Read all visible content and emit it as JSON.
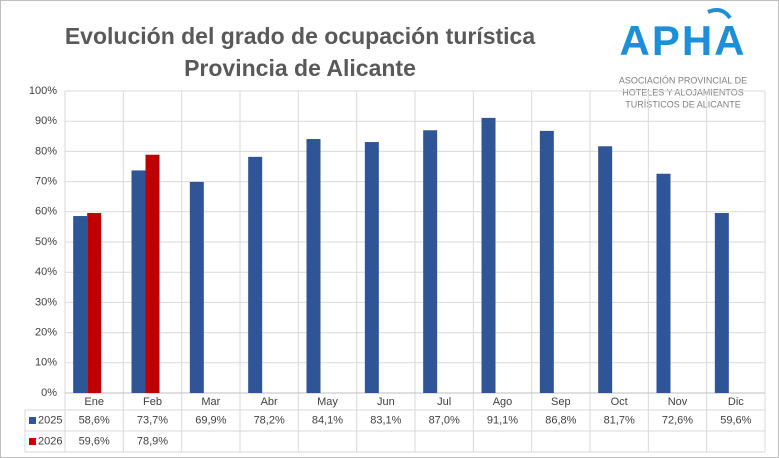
{
  "chart_data": {
    "type": "bar",
    "title": "Evolución del grado de ocupación turística",
    "subtitle": "Provincia de Alicante",
    "logo": {
      "name": "APHA",
      "lines": [
        "ASOCIACIÓN PROVINCIAL DE",
        "HOTELES Y ALOJAMIENTOS",
        "TURÍSTICOS DE ALICANTE"
      ]
    },
    "categories": [
      "Ene",
      "Feb",
      "Mar",
      "Abr",
      "May",
      "Jun",
      "Jul",
      "Ago",
      "Sep",
      "Oct",
      "Nov",
      "Dic"
    ],
    "series": [
      {
        "name": "2025",
        "color": "#2f5597",
        "values": [
          58.6,
          73.7,
          69.9,
          78.2,
          84.1,
          83.1,
          87.0,
          91.1,
          86.8,
          81.7,
          72.6,
          59.6
        ],
        "value_labels": [
          "58,6%",
          "73,7%",
          "69,9%",
          "78,2%",
          "84,1%",
          "83,1%",
          "87,0%",
          "91,1%",
          "86,8%",
          "81,7%",
          "72,6%",
          "59,6%"
        ]
      },
      {
        "name": "2026",
        "color": "#c00000",
        "values": [
          59.6,
          78.9,
          null,
          null,
          null,
          null,
          null,
          null,
          null,
          null,
          null,
          null
        ],
        "value_labels": [
          "59,6%",
          "78,9%",
          null,
          null,
          null,
          null,
          null,
          null,
          null,
          null,
          null,
          null
        ]
      }
    ],
    "ylim": [
      0,
      100
    ],
    "yticks": [
      {
        "value": 0,
        "label": "0%"
      },
      {
        "value": 10,
        "label": "10%"
      },
      {
        "value": 20,
        "label": "20%"
      },
      {
        "value": 30,
        "label": "30%"
      },
      {
        "value": 40,
        "label": "40%"
      },
      {
        "value": 50,
        "label": "50%"
      },
      {
        "value": 60,
        "label": "60%"
      },
      {
        "value": 70,
        "label": "70%"
      },
      {
        "value": 80,
        "label": "80%"
      },
      {
        "value": 90,
        "label": "90%"
      },
      {
        "value": 100,
        "label": "100%"
      }
    ],
    "grid": true
  }
}
